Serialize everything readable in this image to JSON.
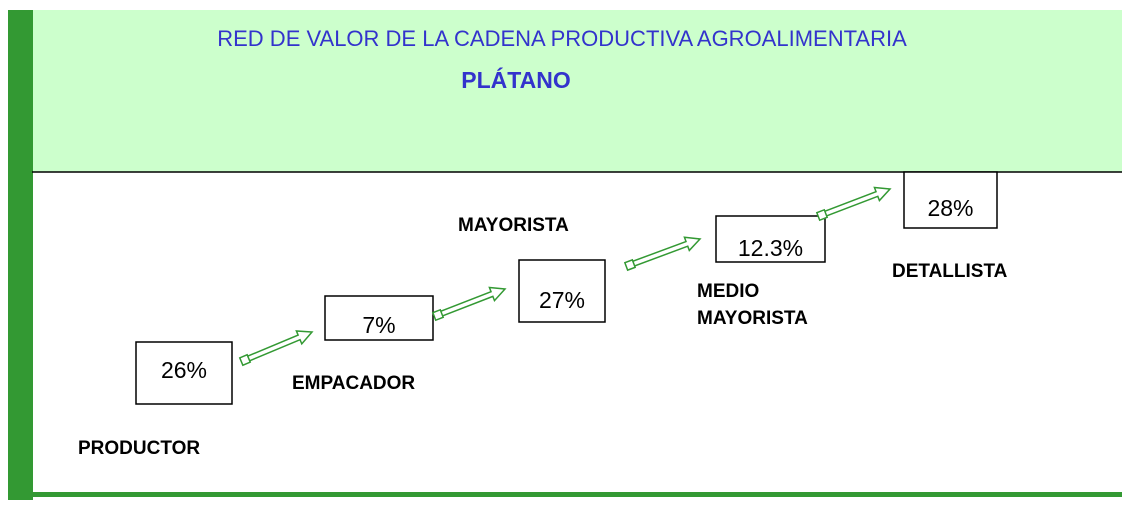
{
  "header": {
    "title": "RED DE VALOR DE LA CADENA PRODUCTIVA AGROALIMENTARIA",
    "subtitle": "PLÁTANO"
  },
  "stages": [
    {
      "label_lines": [
        "PRODUCTOR"
      ],
      "value": "26%"
    },
    {
      "label_lines": [
        "EMPACADOR"
      ],
      "value": "7%"
    },
    {
      "label_lines": [
        "MAYORISTA"
      ],
      "value": "27%"
    },
    {
      "label_lines": [
        "MEDIO",
        "MAYORISTA"
      ],
      "value": "12.3%"
    },
    {
      "label_lines": [
        "DETALLISTA"
      ],
      "value": "28%"
    }
  ]
}
